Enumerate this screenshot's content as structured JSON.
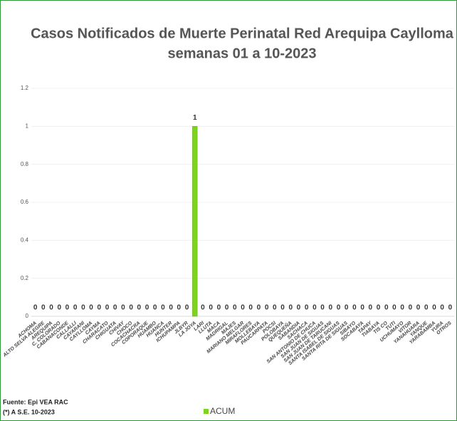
{
  "chart_data": {
    "type": "bar",
    "title": "Casos Notificados de Muerte Perinatal Red Arequipa Caylloma",
    "subtitle": "semanas 01 a 10-2023",
    "source": "Fuente: Epi VEA RAC",
    "note": "(*) A S.E. 10-2023",
    "categories": [
      "ACHOMA",
      "ALTO SELVA ALEGRE",
      "AREQUIPA",
      "C. COLORADO",
      "CABANACONDE",
      "CALLALLI",
      "CAYARANI",
      "CAYLLOMA",
      "CAYMA",
      "CHARACATO",
      "CHIGUATA",
      "CHIVAY",
      "CHOCO",
      "COCACHACRA",
      "COPORAQUE",
      "HUAMBO",
      "HUANCA",
      "HUNTER",
      "ICHUPAMPA",
      "JLBYR",
      "LA JOYA",
      "LARI",
      "LLUTA",
      "MACA",
      "MADRIGAL",
      "MAJES",
      "MARIANO MELGAR",
      "MIRAFLORES",
      "MOLLEBAYA",
      "PAUCARPATA",
      "POCSI",
      "POLOBAYA",
      "QUEQUEÑA",
      "SABANDIA",
      "SACHACA",
      "SAN ANTONIO DE CHUCA",
      "SAN JUAN DE SIGUAS",
      "SAN JUAN DE TARUCANI",
      "SANTA ISABEL DE SIGUAS",
      "SANTA RITA DE SIGUAS",
      "SIBAYO",
      "SOCABAYA",
      "TAPAY",
      "TIABAYA",
      "TIS CO",
      "TUTI",
      "UCHUMAYO",
      "VITOR",
      "YANAHUARA",
      "YANQUE",
      "YARABAMBA",
      "YURA",
      "OTROS"
    ],
    "series": [
      {
        "name": "ACUM",
        "color": "#7ed321",
        "values": [
          0,
          0,
          0,
          0,
          0,
          0,
          0,
          0,
          0,
          0,
          0,
          0,
          0,
          0,
          0,
          0,
          0,
          0,
          0,
          0,
          1,
          0,
          0,
          0,
          0,
          0,
          0,
          0,
          0,
          0,
          0,
          0,
          0,
          0,
          0,
          0,
          0,
          0,
          0,
          0,
          0,
          0,
          0,
          0,
          0,
          0,
          0,
          0,
          0,
          0,
          0,
          0,
          0
        ]
      }
    ],
    "ylim": [
      0,
      1.2
    ],
    "yticks": [
      0,
      0.2,
      0.4,
      0.6,
      0.8,
      1,
      1.2
    ],
    "grid": true,
    "data_labels": true,
    "legend": "bottom"
  }
}
